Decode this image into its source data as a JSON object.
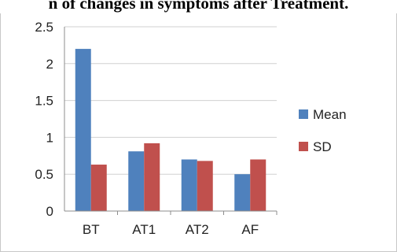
{
  "page_title": "n of changes in symptoms after Treatment.",
  "chart_data": {
    "type": "bar",
    "title": "",
    "xlabel": "",
    "ylabel": "",
    "categories": [
      "BT",
      "AT1",
      "AT2",
      "AF"
    ],
    "ylim": [
      0,
      2.5
    ],
    "yticks": [
      "0",
      "0.5",
      "1",
      "1.5",
      "2",
      "2.5"
    ],
    "grid": true,
    "legend_position": "right",
    "series": [
      {
        "name": "Mean",
        "color": "#4f81bd",
        "values": [
          2.2,
          0.81,
          0.7,
          0.5
        ]
      },
      {
        "name": "SD",
        "color": "#c0504d",
        "values": [
          0.63,
          0.92,
          0.68,
          0.7
        ]
      }
    ]
  }
}
